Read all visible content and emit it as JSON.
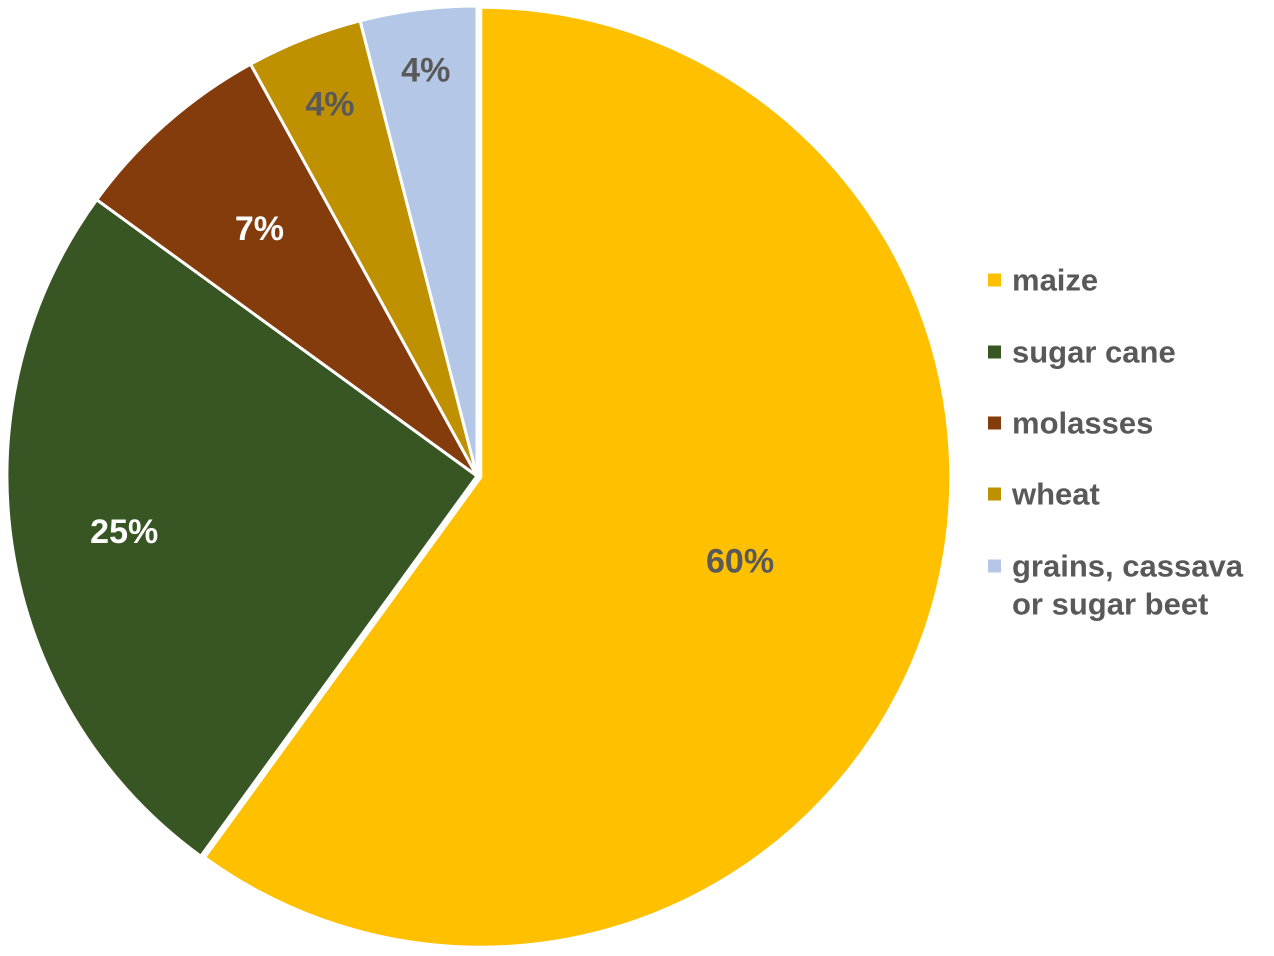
{
  "chart_data": {
    "type": "pie",
    "title": "",
    "categories": [
      "maize",
      "sugar cane",
      "molasses",
      "wheat",
      "grains, cassava or sugar beet"
    ],
    "values": [
      60,
      25,
      7,
      4,
      4
    ],
    "data_labels": [
      "60%",
      "25%",
      "7%",
      "4%",
      "4%"
    ],
    "colors": [
      "#FFC000",
      "#375623",
      "#843C0C",
      "#BF9000",
      "#B4C7E7"
    ],
    "label_colors": [
      "#595959",
      "#ffffff",
      "#ffffff",
      "#595959",
      "#595959"
    ],
    "legend": {
      "position": "right",
      "entries": [
        {
          "label_lines": [
            "maize"
          ]
        },
        {
          "label_lines": [
            "sugar cane"
          ]
        },
        {
          "label_lines": [
            "molasses"
          ]
        },
        {
          "label_lines": [
            "wheat"
          ]
        },
        {
          "label_lines": [
            "grains, cassava",
            "or sugar beet"
          ]
        }
      ],
      "text_color": "#595959"
    },
    "start_angle": "12 o'clock",
    "direction": "clockwise"
  }
}
